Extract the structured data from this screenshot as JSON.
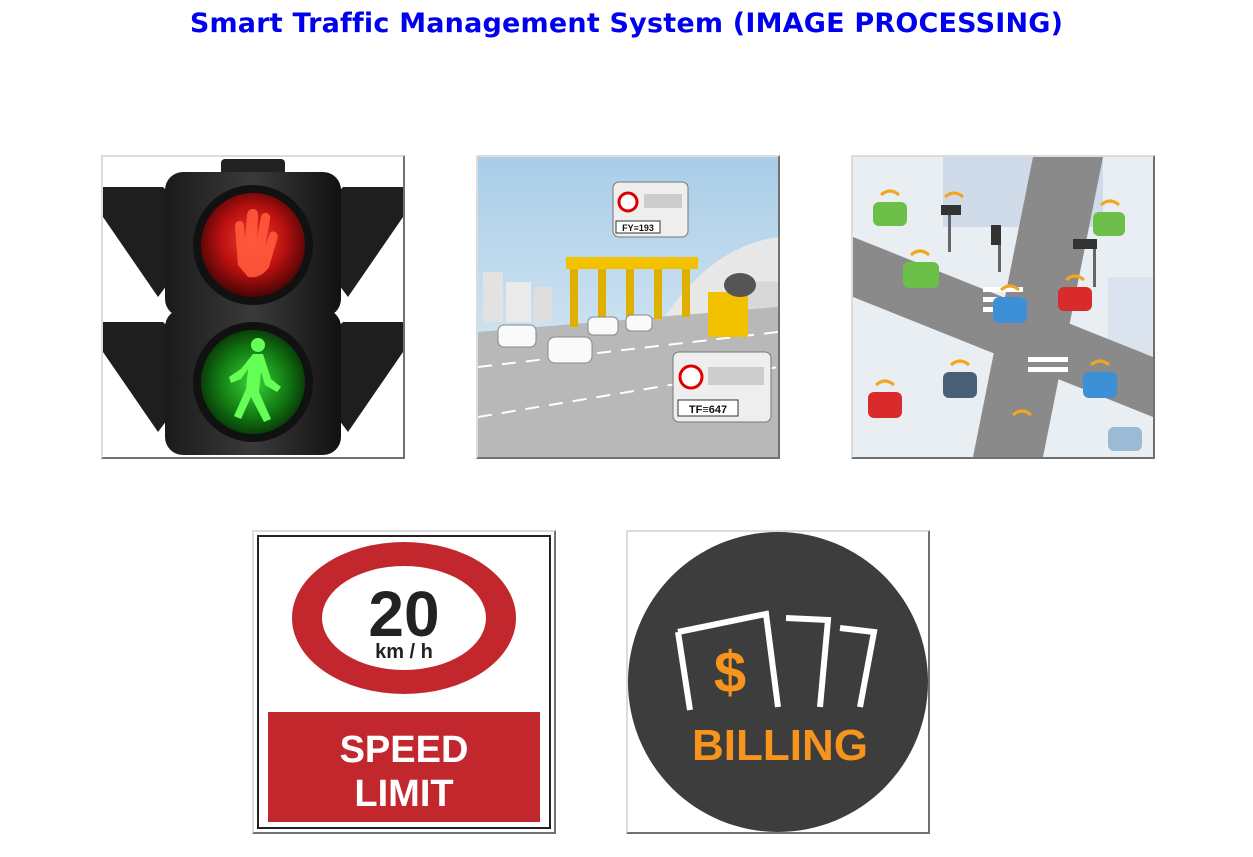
{
  "page": {
    "title": "Smart Traffic Management System (IMAGE PROCESSING)"
  },
  "tiles": [
    {
      "id": "traffic-signal",
      "icon": "traffic-light-icon"
    },
    {
      "id": "toll-plaza",
      "icon": "toll-plaza-icon",
      "plates": [
        "FY≡193",
        "TF≡647"
      ]
    },
    {
      "id": "smart-intersection",
      "icon": "connected-intersection-icon"
    },
    {
      "id": "speed-limit",
      "icon": "speed-limit-sign-icon",
      "speed_value": "20",
      "speed_unit": "km / h",
      "sign_line1": "SPEED",
      "sign_line2": "LIMIT"
    },
    {
      "id": "billing",
      "icon": "billing-icon",
      "currency_symbol": "$",
      "label": "BILLING"
    }
  ],
  "colors": {
    "title": "#0000ee",
    "red_signal": "#d41a1a",
    "green_signal": "#22c11e",
    "speed_sign_red": "#c1272d",
    "billing_bg": "#3d3d3d",
    "billing_accent": "#f7941d"
  }
}
